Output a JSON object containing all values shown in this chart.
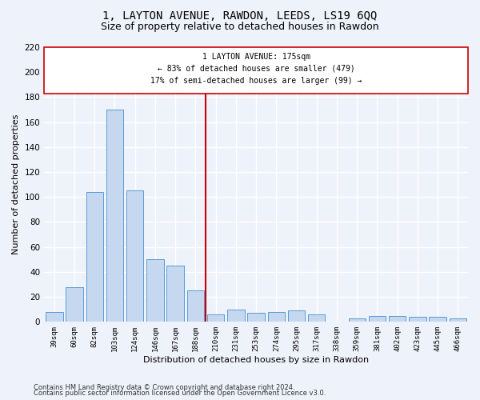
{
  "title1": "1, LAYTON AVENUE, RAWDON, LEEDS, LS19 6QQ",
  "title2": "Size of property relative to detached houses in Rawdon",
  "xlabel": "Distribution of detached houses by size in Rawdon",
  "ylabel": "Number of detached properties",
  "categories": [
    "39sqm",
    "60sqm",
    "82sqm",
    "103sqm",
    "124sqm",
    "146sqm",
    "167sqm",
    "188sqm",
    "210sqm",
    "231sqm",
    "253sqm",
    "274sqm",
    "295sqm",
    "317sqm",
    "338sqm",
    "359sqm",
    "381sqm",
    "402sqm",
    "423sqm",
    "445sqm",
    "466sqm"
  ],
  "values": [
    8,
    28,
    104,
    170,
    105,
    50,
    45,
    25,
    6,
    10,
    7,
    8,
    9,
    6,
    0,
    3,
    5,
    5,
    4,
    4,
    3
  ],
  "bar_color": "#c5d8f0",
  "bar_edge_color": "#5b9bd5",
  "vline_x": 7.5,
  "annotation_line1": "1 LAYTON AVENUE: 175sqm",
  "annotation_line2": "← 83% of detached houses are smaller (479)",
  "annotation_line3": "17% of semi-detached houses are larger (99) →",
  "box_color": "#ffffff",
  "box_edge_color": "#cc0000",
  "vline_color": "#cc0000",
  "ylim": [
    0,
    220
  ],
  "yticks": [
    0,
    20,
    40,
    60,
    80,
    100,
    120,
    140,
    160,
    180,
    200,
    220
  ],
  "footnote1": "Contains HM Land Registry data © Crown copyright and database right 2024.",
  "footnote2": "Contains public sector information licensed under the Open Government Licence v3.0.",
  "bg_color": "#eef2fa",
  "grid_color": "#ffffff",
  "title1_fontsize": 10,
  "title2_fontsize": 9,
  "xlabel_fontsize": 8,
  "ylabel_fontsize": 8,
  "footnote_fontsize": 6
}
